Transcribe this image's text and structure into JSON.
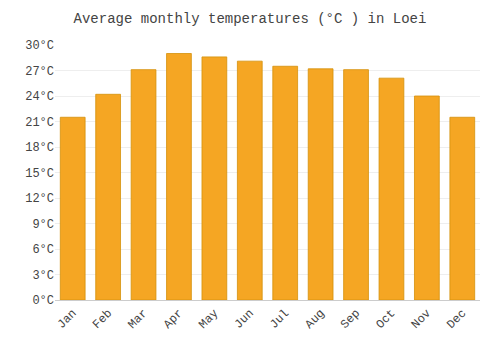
{
  "chart_data": {
    "type": "bar",
    "title": "Average monthly temperatures (°C ) in Loei",
    "categories": [
      "Jan",
      "Feb",
      "Mar",
      "Apr",
      "May",
      "Jun",
      "Jul",
      "Aug",
      "Sep",
      "Oct",
      "Nov",
      "Dec"
    ],
    "values": [
      21.5,
      24.2,
      27.1,
      29.0,
      28.6,
      28.1,
      27.5,
      27.2,
      27.1,
      26.1,
      24.0,
      21.5
    ],
    "color": "#F5A623",
    "ylim": [
      0,
      30
    ],
    "yticks": [
      {
        "value": 0,
        "label": "0°C"
      },
      {
        "value": 3,
        "label": "3°C"
      },
      {
        "value": 6,
        "label": "6°C"
      },
      {
        "value": 9,
        "label": "9°C"
      },
      {
        "value": 12,
        "label": "12°C"
      },
      {
        "value": 15,
        "label": "15°C"
      },
      {
        "value": 18,
        "label": "18°C"
      },
      {
        "value": 21,
        "label": "21°C"
      },
      {
        "value": 24,
        "label": "24°C"
      },
      {
        "value": 27,
        "label": "27°C"
      },
      {
        "value": 30,
        "label": "30°C"
      }
    ],
    "grid": true
  }
}
